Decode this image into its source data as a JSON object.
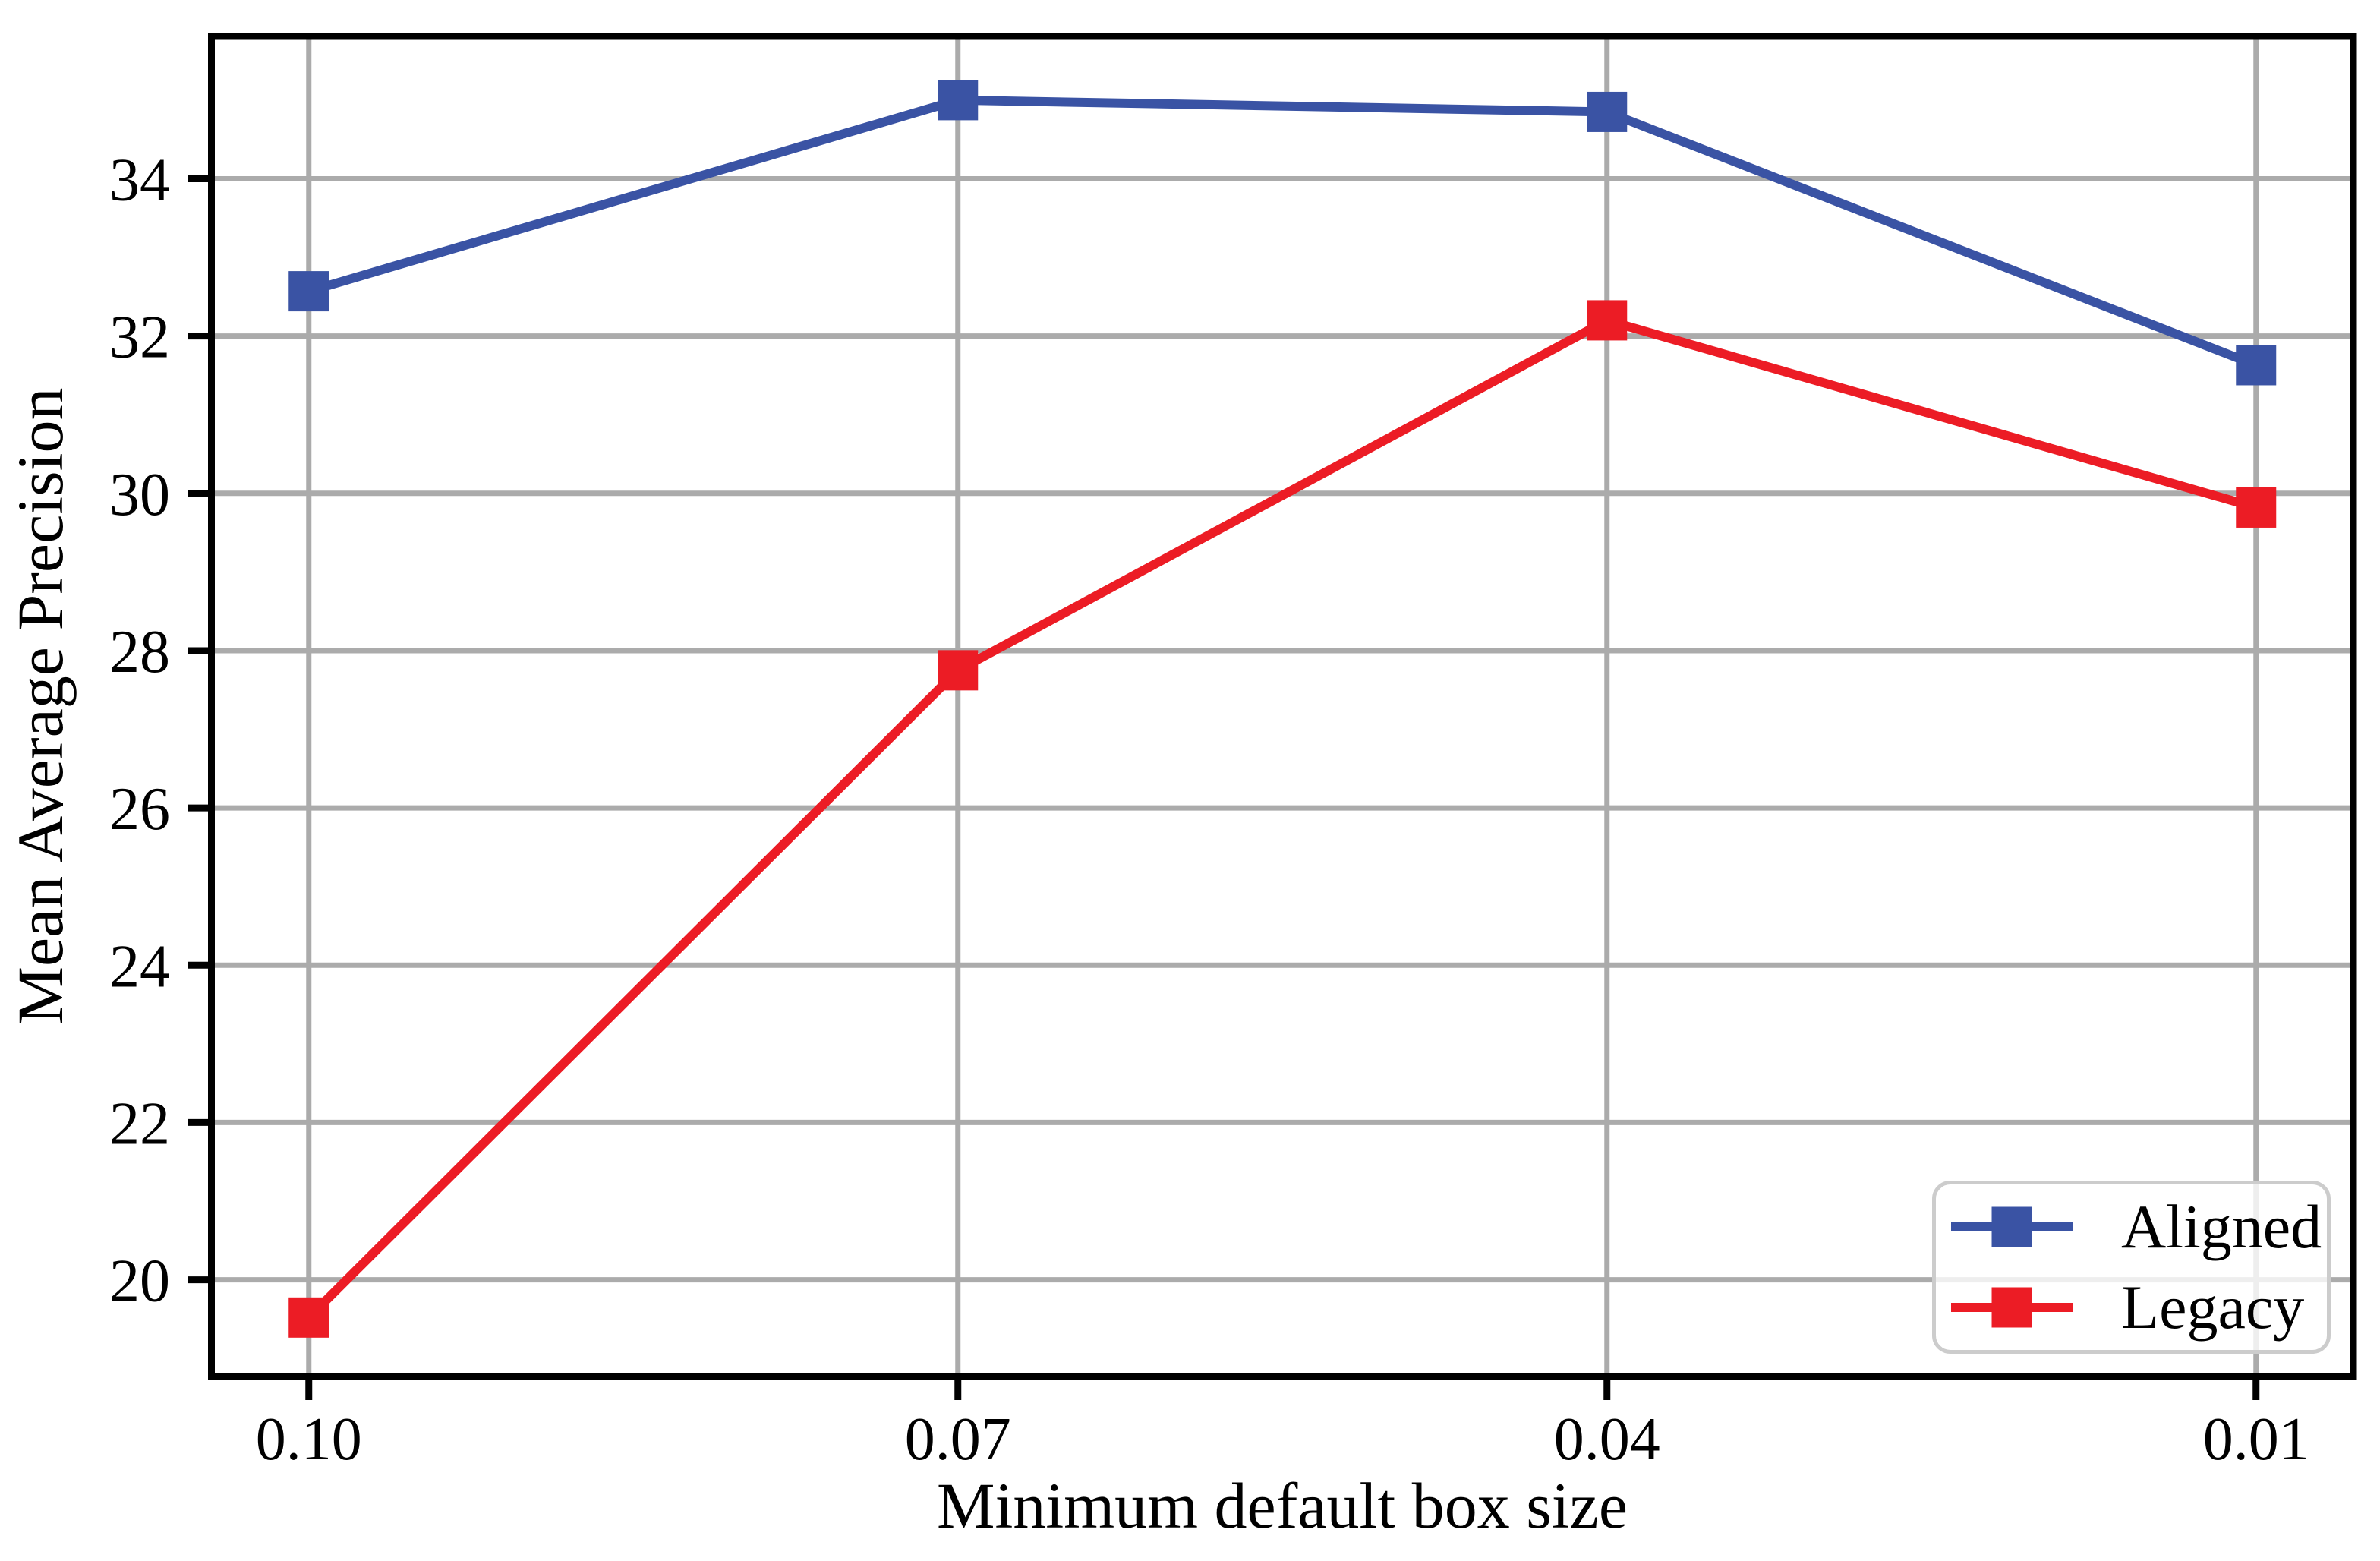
{
  "figure": {
    "background": "#ffffff"
  },
  "legend": {
    "entries": [
      {
        "label": "Aligned",
        "color": "#3a53a4"
      },
      {
        "label": "Legacy",
        "color": "#ec1c25"
      }
    ]
  },
  "chart_data": {
    "type": "line",
    "title": "",
    "xlabel": "Minimum default box size",
    "ylabel": "Mean Average Precision",
    "categories": [
      "0.10",
      "0.07",
      "0.04",
      "0.01"
    ],
    "series": [
      {
        "name": "Aligned",
        "color": "#3a53a4",
        "marker": "square",
        "values": [
          32.57,
          35.0,
          34.85,
          31.63
        ]
      },
      {
        "name": "Legacy",
        "color": "#ec1c25",
        "marker": "square",
        "values": [
          19.52,
          27.75,
          32.2,
          29.82
        ]
      }
    ],
    "y_ticks": [
      20,
      22,
      24,
      26,
      28,
      30,
      32,
      34
    ],
    "ylim": [
      18.77,
      35.81
    ],
    "xlim": [
      -0.15,
      3.15
    ],
    "grid": true,
    "grid_color": "#ababab",
    "axis_color": "#000000",
    "legend_position": "lower right"
  }
}
